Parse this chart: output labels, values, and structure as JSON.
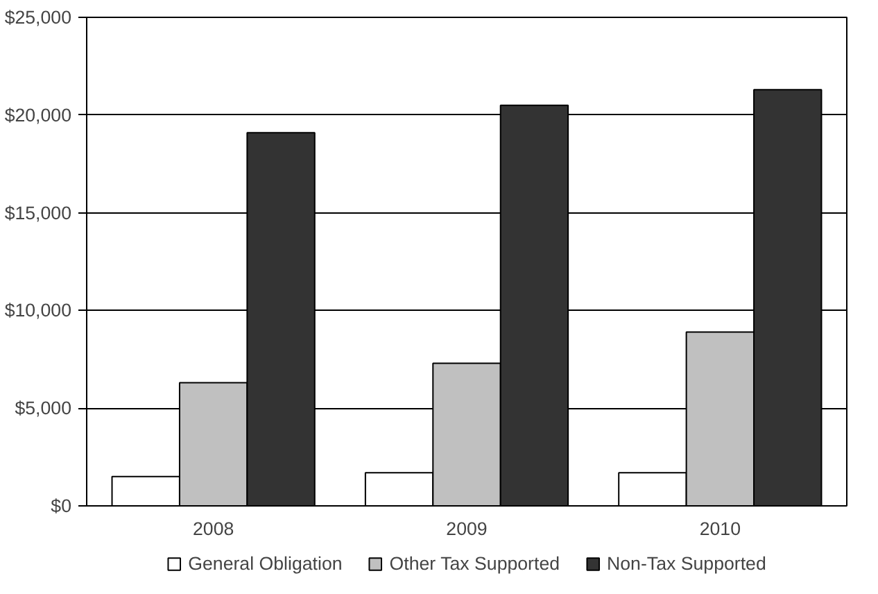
{
  "chart_data": {
    "type": "bar",
    "categories": [
      "2008",
      "2009",
      "2010"
    ],
    "series": [
      {
        "name": "General Obligation",
        "color": "#ffffff",
        "values": [
          1500,
          1700,
          1700
        ]
      },
      {
        "name": "Other Tax Supported",
        "color": "#c0c0c0",
        "values": [
          6300,
          7300,
          8900
        ]
      },
      {
        "name": "Non-Tax Supported",
        "color": "#333333",
        "values": [
          19100,
          20500,
          21300
        ]
      }
    ],
    "ylim": [
      0,
      25000
    ],
    "yticks": [
      {
        "value": 0,
        "label": "$0"
      },
      {
        "value": 5000,
        "label": "$5,000"
      },
      {
        "value": 10000,
        "label": "$10,000"
      },
      {
        "value": 15000,
        "label": "$15,000"
      },
      {
        "value": 20000,
        "label": "$20,000"
      },
      {
        "value": 25000,
        "label": "$25,000"
      }
    ],
    "grid": "y",
    "legend": "bottom"
  }
}
